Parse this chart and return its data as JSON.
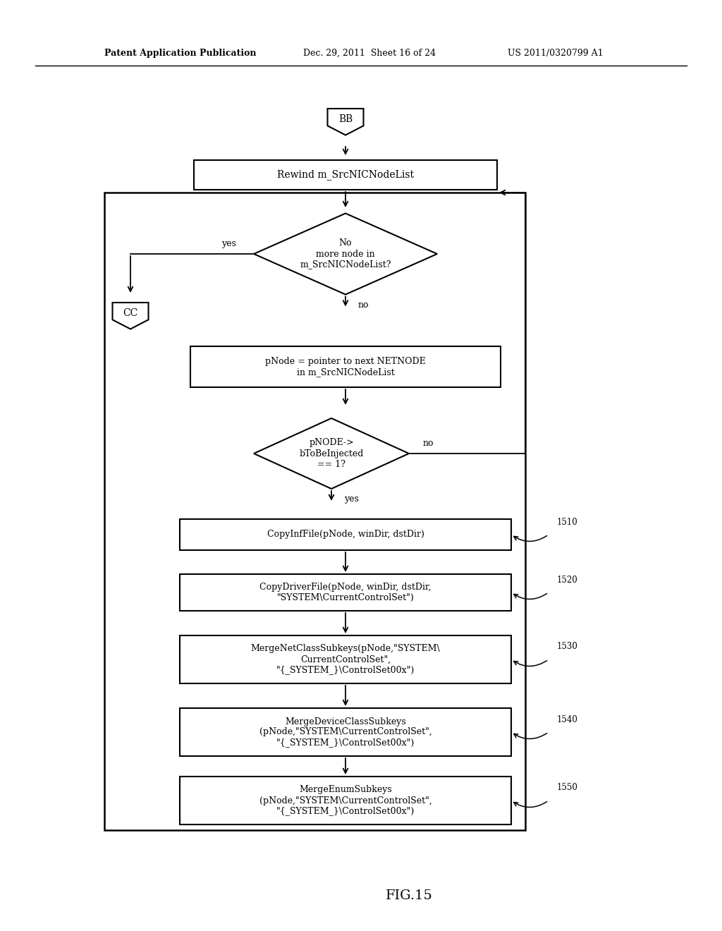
{
  "header_left": "Patent Application Publication",
  "header_mid": "Dec. 29, 2011  Sheet 16 of 24",
  "header_right": "US 2011/0320799 A1",
  "title": "FIG.15",
  "bg_color": "#ffffff",
  "bb_label": "BB",
  "cc_label": "CC",
  "rewind_label": "Rewind m_SrcNICNodeList",
  "diamond1_label": "No\nmore node in\nm_SrcNICNodeList?",
  "pnode_label": "pNode = pointer to next NETNODE\nin m_SrcNICNodeList",
  "diamond2_label": "pNODE->\nbToBeInjected\n== 1?",
  "box1510_label": "CopyInfFile(pNode, winDir, dstDir)",
  "box1520_label": "CopyDriverFile(pNode, winDir, dstDir,\n\"SYSTEM\\CurrentControlSet\")",
  "box1530_label": "MergeNetClassSubkeys(pNode,\"SYSTEM\\\nCurrentControlSet\",\n\"{_SYSTEM_}\\ControlSet00x\")",
  "box1540_label": "MergeDeviceClassSubkeys\n(pNode,\"SYSTEM\\CurrentControlSet\",\n\"{_SYSTEM_}\\ControlSet00x\")",
  "box1550_label": "MergeEnumSubkeys\n(pNode,\"SYSTEM\\CurrentControlSet\",\n\"{_SYSTEM_}\\ControlSet00x\")",
  "ref1510": "1510",
  "ref1520": "1520",
  "ref1530": "1530",
  "ref1540": "1540",
  "ref1550": "1550"
}
